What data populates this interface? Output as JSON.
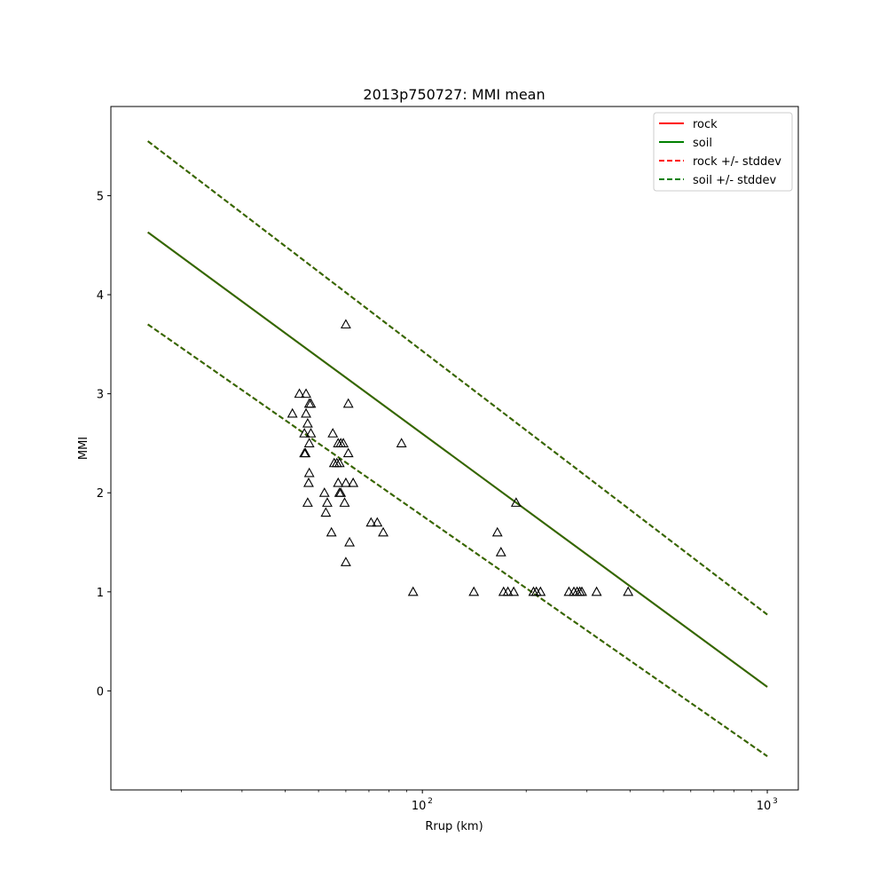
{
  "chart_data": {
    "type": "scatter",
    "title": "2013p750727: MMI mean",
    "xlabel": "Rrup (km)",
    "ylabel": "MMI",
    "x_scale": "log",
    "xlim": [
      12.5,
      1230
    ],
    "ylim": [
      -1.0,
      5.9
    ],
    "x_ticks": [
      {
        "value": 100,
        "base": "10",
        "exp": "2"
      },
      {
        "value": 1000,
        "base": "10",
        "exp": "3"
      }
    ],
    "y_ticks": [
      {
        "value": 0,
        "label": "0"
      },
      {
        "value": 1,
        "label": "1"
      },
      {
        "value": 2,
        "label": "2"
      },
      {
        "value": 3,
        "label": "3"
      },
      {
        "value": 4,
        "label": "4"
      },
      {
        "value": 5,
        "label": "5"
      }
    ],
    "legend_position": "top-right",
    "legend": [
      {
        "label": "rock",
        "color": "#ff0000",
        "style": "solid"
      },
      {
        "label": "soil",
        "color": "#008000",
        "style": "solid"
      },
      {
        "label": "rock +/- stddev",
        "color": "#ff0000",
        "style": "dashed"
      },
      {
        "label": "soil +/- stddev",
        "color": "#008000",
        "style": "dashed"
      }
    ],
    "lines": [
      {
        "name": "rock",
        "color": "#ff0000",
        "style": "solid",
        "x": [
          16,
          1000
        ],
        "y": [
          4.63,
          0.04
        ]
      },
      {
        "name": "rock +/- stddev",
        "color": "#ff0000",
        "style": "dashed",
        "x": [
          16,
          1000
        ],
        "y": [
          5.55,
          0.77
        ]
      },
      {
        "name": "rock +/- stddev",
        "color": "#ff0000",
        "style": "dashed",
        "x": [
          16,
          1000
        ],
        "y": [
          3.7,
          -0.66
        ]
      },
      {
        "name": "soil",
        "color": "#2a6e00",
        "style": "solid",
        "x": [
          16,
          1000
        ],
        "y": [
          4.63,
          0.04
        ]
      },
      {
        "name": "soil +/- stddev",
        "color": "#2a6e00",
        "style": "dashed",
        "x": [
          16,
          1000
        ],
        "y": [
          5.55,
          0.77
        ]
      },
      {
        "name": "soil +/- stddev",
        "color": "#2a6e00",
        "style": "dashed",
        "x": [
          16,
          1000
        ],
        "y": [
          3.7,
          -0.66
        ]
      }
    ],
    "points": [
      {
        "x": 44.0,
        "y": 3.0
      },
      {
        "x": 46.0,
        "y": 3.0
      },
      {
        "x": 42.0,
        "y": 2.8
      },
      {
        "x": 47.0,
        "y": 2.9
      },
      {
        "x": 47.5,
        "y": 2.9
      },
      {
        "x": 46.0,
        "y": 2.8
      },
      {
        "x": 46.5,
        "y": 2.7
      },
      {
        "x": 45.5,
        "y": 2.6
      },
      {
        "x": 47.5,
        "y": 2.6
      },
      {
        "x": 47.0,
        "y": 2.5
      },
      {
        "x": 45.5,
        "y": 2.4
      },
      {
        "x": 45.8,
        "y": 2.4
      },
      {
        "x": 47.0,
        "y": 2.2
      },
      {
        "x": 46.8,
        "y": 2.1
      },
      {
        "x": 46.5,
        "y": 1.9
      },
      {
        "x": 60.0,
        "y": 3.7
      },
      {
        "x": 61.0,
        "y": 2.9
      },
      {
        "x": 55.0,
        "y": 2.6
      },
      {
        "x": 57.0,
        "y": 2.5
      },
      {
        "x": 58.0,
        "y": 2.5
      },
      {
        "x": 59.0,
        "y": 2.5
      },
      {
        "x": 61.0,
        "y": 2.4
      },
      {
        "x": 55.5,
        "y": 2.3
      },
      {
        "x": 56.5,
        "y": 2.3
      },
      {
        "x": 57.5,
        "y": 2.3
      },
      {
        "x": 57.0,
        "y": 2.1
      },
      {
        "x": 60.0,
        "y": 2.1
      },
      {
        "x": 63.0,
        "y": 2.1
      },
      {
        "x": 52.0,
        "y": 2.0
      },
      {
        "x": 57.5,
        "y": 2.0
      },
      {
        "x": 58.0,
        "y": 2.0
      },
      {
        "x": 53.0,
        "y": 1.9
      },
      {
        "x": 59.5,
        "y": 1.9
      },
      {
        "x": 52.5,
        "y": 1.8
      },
      {
        "x": 54.5,
        "y": 1.6
      },
      {
        "x": 61.5,
        "y": 1.5
      },
      {
        "x": 60.0,
        "y": 1.3
      },
      {
        "x": 71.0,
        "y": 1.7
      },
      {
        "x": 74.0,
        "y": 1.7
      },
      {
        "x": 77.0,
        "y": 1.6
      },
      {
        "x": 87.0,
        "y": 2.5
      },
      {
        "x": 94.0,
        "y": 1.0
      },
      {
        "x": 141.0,
        "y": 1.0
      },
      {
        "x": 165.0,
        "y": 1.6
      },
      {
        "x": 169.0,
        "y": 1.4
      },
      {
        "x": 172.0,
        "y": 1.0
      },
      {
        "x": 177.0,
        "y": 1.0
      },
      {
        "x": 184.0,
        "y": 1.0
      },
      {
        "x": 187.0,
        "y": 1.9
      },
      {
        "x": 210.0,
        "y": 1.0
      },
      {
        "x": 214.0,
        "y": 1.0
      },
      {
        "x": 220.0,
        "y": 1.0
      },
      {
        "x": 266.0,
        "y": 1.0
      },
      {
        "x": 275.0,
        "y": 1.0
      },
      {
        "x": 281.0,
        "y": 1.0
      },
      {
        "x": 286.0,
        "y": 1.0
      },
      {
        "x": 290.0,
        "y": 1.0
      },
      {
        "x": 320.0,
        "y": 1.0
      },
      {
        "x": 395.0,
        "y": 1.0
      }
    ]
  }
}
